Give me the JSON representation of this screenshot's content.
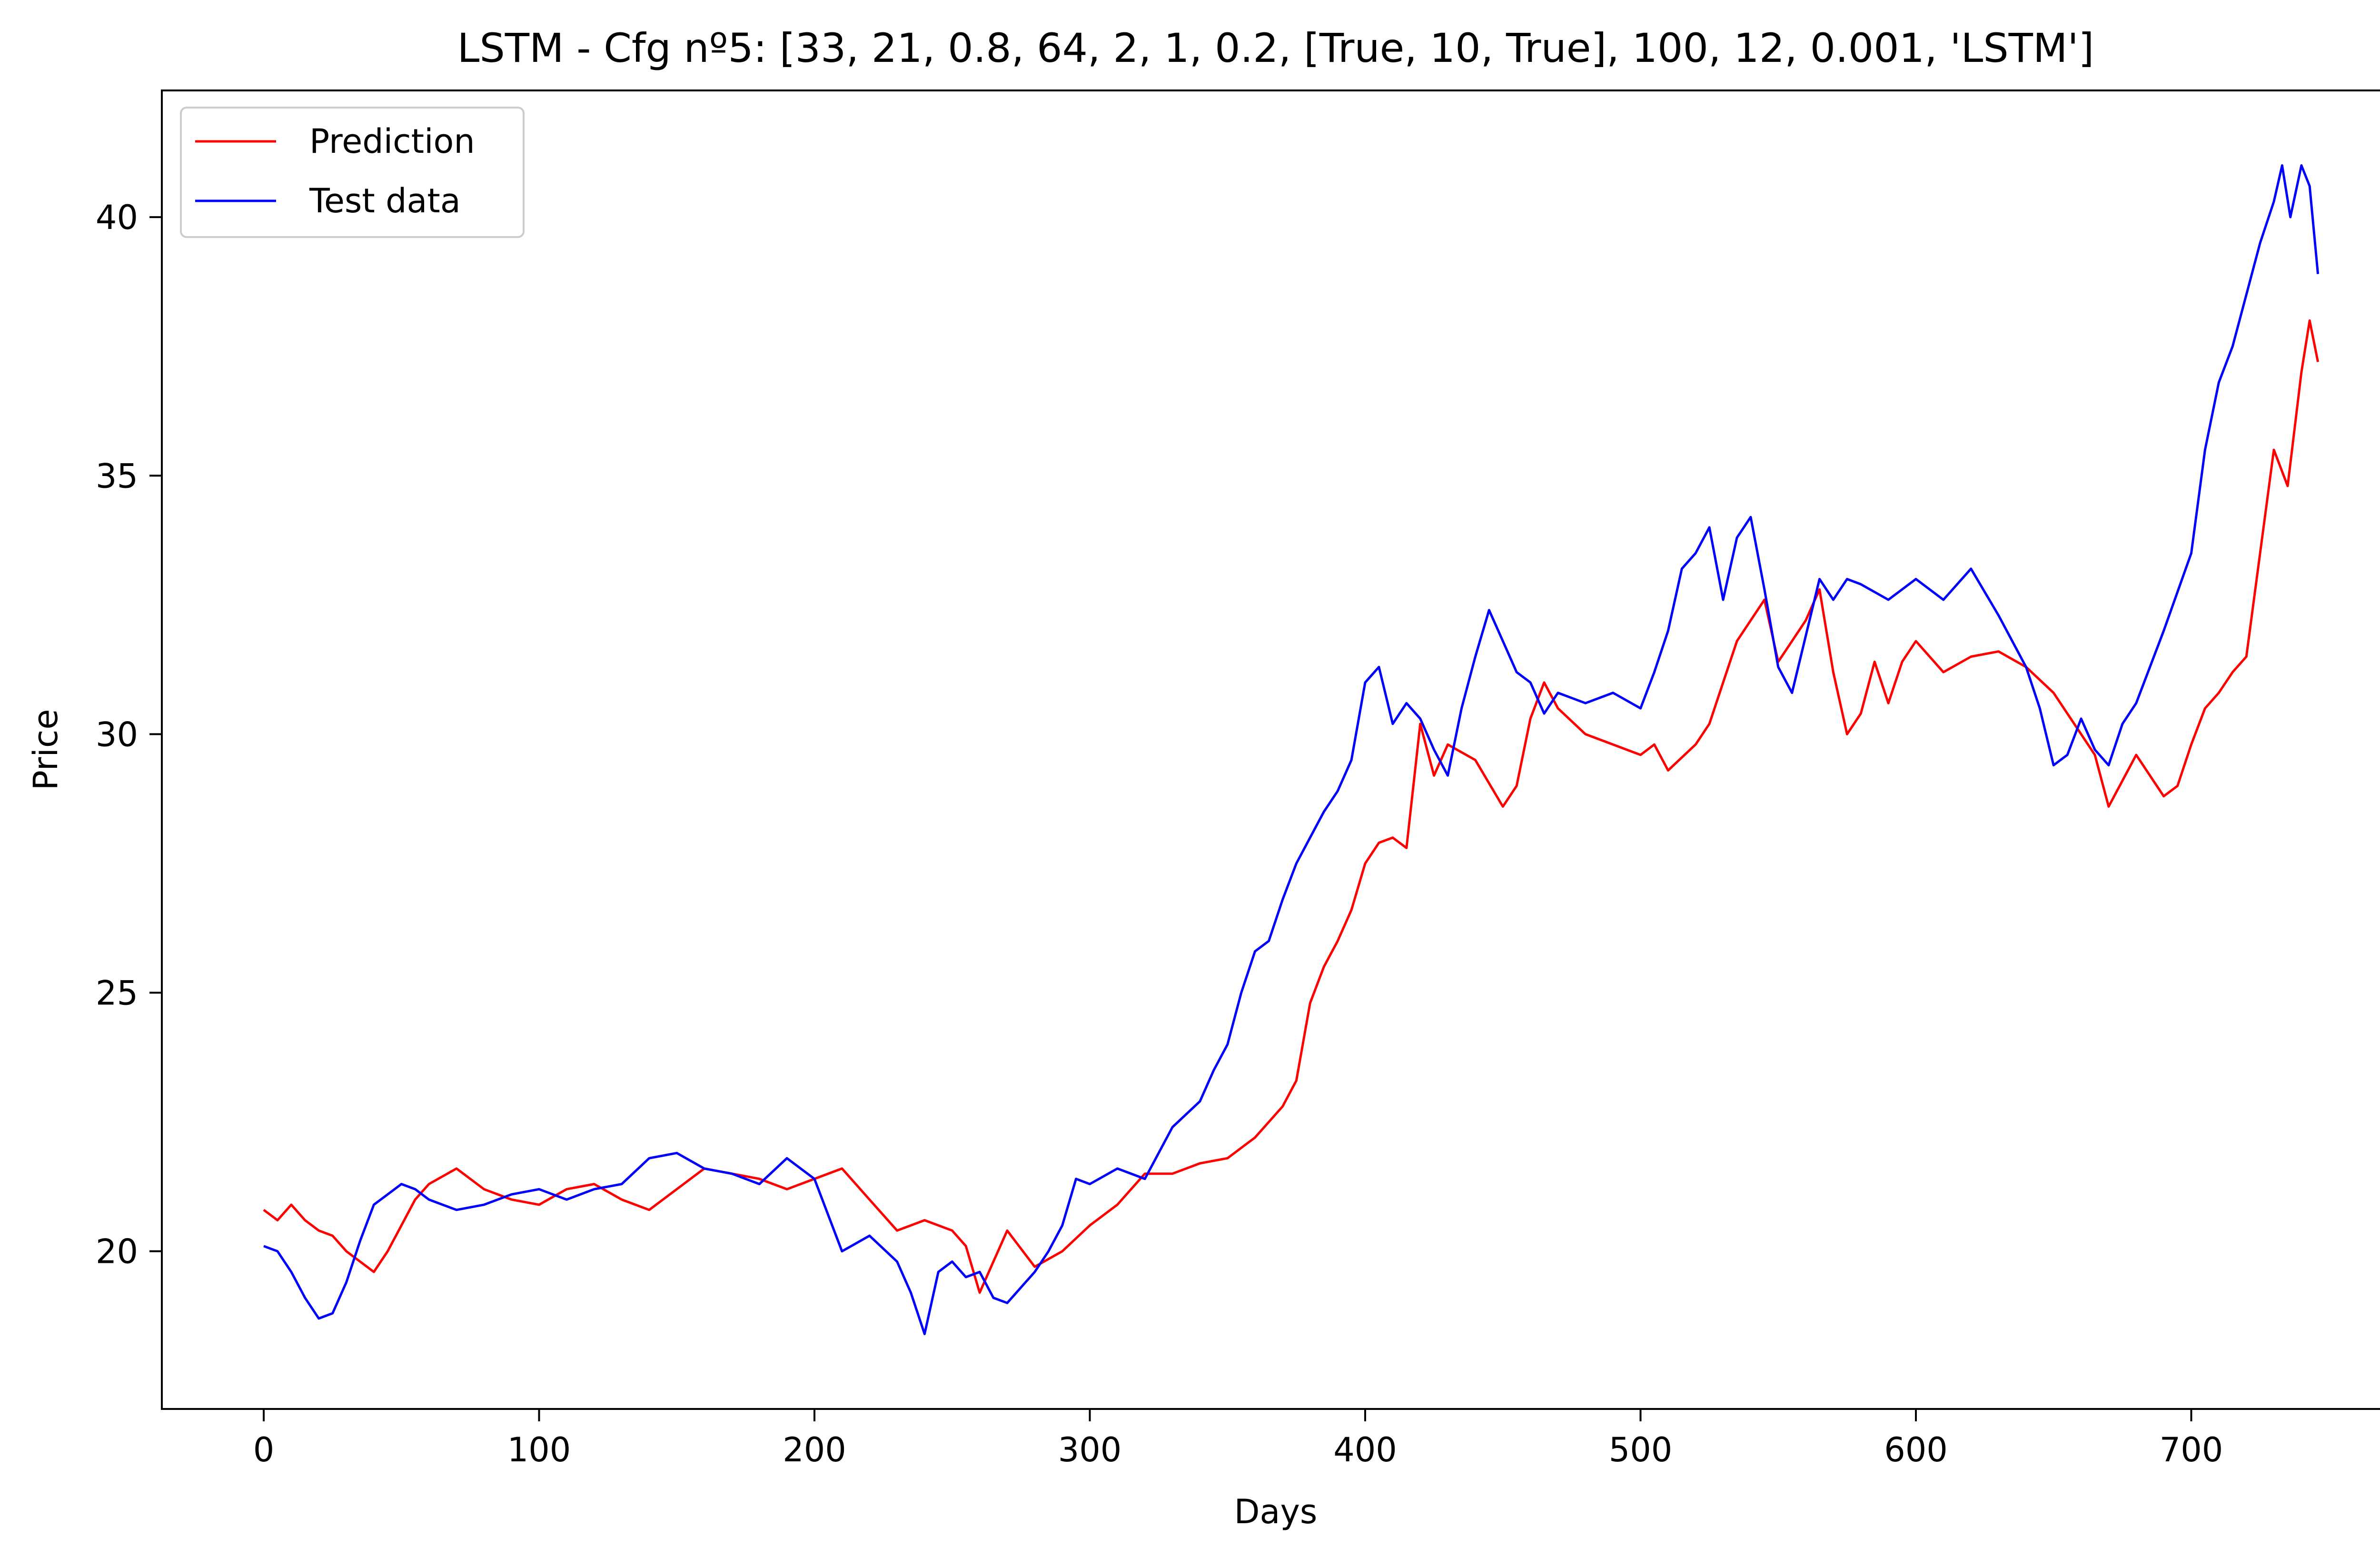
{
  "chart_data": {
    "type": "line",
    "title": "LSTM - Cfg nº5: [33, 21, 0.8, 64, 2, 1, 0.2, [True, 10, True], 100, 12, 0.001, 'LSTM']",
    "xlabel": "Days",
    "ylabel": "Price",
    "xlim": [
      -37,
      772
    ],
    "ylim": [
      16.95,
      42.45
    ],
    "xticks": [
      0,
      100,
      200,
      300,
      400,
      500,
      600,
      700
    ],
    "yticks": [
      20,
      25,
      30,
      35,
      40
    ],
    "legend": {
      "position": "top-left",
      "visible": true
    },
    "grid": false,
    "series": [
      {
        "name": "Prediction",
        "color": "#ff0000",
        "x": [
          0,
          5,
          10,
          15,
          20,
          25,
          30,
          35,
          40,
          45,
          50,
          55,
          60,
          70,
          80,
          90,
          100,
          110,
          120,
          130,
          140,
          150,
          160,
          170,
          180,
          190,
          200,
          210,
          220,
          230,
          240,
          250,
          255,
          260,
          265,
          270,
          280,
          290,
          300,
          310,
          320,
          330,
          340,
          350,
          360,
          370,
          375,
          380,
          385,
          390,
          395,
          400,
          405,
          410,
          415,
          420,
          425,
          430,
          440,
          450,
          455,
          460,
          465,
          470,
          480,
          490,
          500,
          505,
          510,
          520,
          525,
          530,
          535,
          540,
          545,
          550,
          555,
          560,
          565,
          570,
          575,
          580,
          585,
          590,
          595,
          600,
          610,
          620,
          630,
          640,
          650,
          660,
          665,
          670,
          680,
          690,
          695,
          700,
          705,
          710,
          715,
          720,
          725,
          730,
          735,
          740,
          743,
          746
        ],
        "values": [
          20.8,
          20.6,
          20.9,
          20.6,
          20.4,
          20.3,
          20.0,
          19.8,
          19.6,
          20.0,
          20.5,
          21.0,
          21.3,
          21.6,
          21.2,
          21.0,
          20.9,
          21.2,
          21.3,
          21.0,
          20.8,
          21.2,
          21.6,
          21.5,
          21.4,
          21.2,
          21.4,
          21.6,
          21.0,
          20.4,
          20.6,
          20.4,
          20.1,
          19.2,
          19.8,
          20.4,
          19.7,
          20.0,
          20.5,
          20.9,
          21.5,
          21.5,
          21.7,
          21.8,
          22.2,
          22.8,
          23.3,
          24.8,
          25.5,
          26.0,
          26.6,
          27.5,
          27.9,
          28.0,
          27.8,
          30.2,
          29.2,
          29.8,
          29.5,
          28.6,
          29.0,
          30.3,
          31.0,
          30.5,
          30.0,
          29.8,
          29.6,
          29.8,
          29.3,
          29.8,
          30.2,
          31.0,
          31.8,
          32.2,
          32.6,
          31.4,
          31.8,
          32.2,
          32.8,
          31.2,
          30.0,
          30.4,
          31.4,
          30.6,
          31.4,
          31.8,
          31.2,
          31.5,
          31.6,
          31.3,
          30.8,
          30.0,
          29.6,
          28.6,
          29.6,
          28.8,
          29.0,
          29.8,
          30.5,
          30.8,
          31.2,
          31.5,
          33.5,
          35.5,
          34.8,
          37.0,
          38.0,
          37.2
        ]
      },
      {
        "name": "Test data",
        "color": "#0000ff",
        "x": [
          0,
          5,
          10,
          15,
          20,
          25,
          30,
          35,
          40,
          45,
          50,
          55,
          60,
          70,
          80,
          90,
          100,
          110,
          120,
          130,
          140,
          150,
          160,
          170,
          180,
          190,
          200,
          210,
          220,
          230,
          235,
          240,
          245,
          250,
          255,
          260,
          265,
          270,
          280,
          285,
          290,
          295,
          300,
          310,
          320,
          330,
          340,
          345,
          350,
          355,
          360,
          365,
          370,
          375,
          380,
          385,
          390,
          395,
          400,
          405,
          410,
          415,
          420,
          425,
          430,
          435,
          440,
          445,
          450,
          455,
          460,
          465,
          470,
          480,
          490,
          500,
          505,
          510,
          515,
          520,
          525,
          530,
          535,
          540,
          545,
          550,
          555,
          560,
          565,
          570,
          575,
          580,
          590,
          600,
          610,
          620,
          630,
          640,
          645,
          650,
          655,
          660,
          665,
          670,
          675,
          680,
          690,
          700,
          705,
          710,
          715,
          720,
          725,
          730,
          733,
          736,
          740,
          743,
          746
        ],
        "values": [
          20.1,
          20.0,
          19.6,
          19.1,
          18.7,
          18.8,
          19.4,
          20.2,
          20.9,
          21.1,
          21.3,
          21.2,
          21.0,
          20.8,
          20.9,
          21.1,
          21.2,
          21.0,
          21.2,
          21.3,
          21.8,
          21.9,
          21.6,
          21.5,
          21.3,
          21.8,
          21.4,
          20.0,
          20.3,
          19.8,
          19.2,
          18.4,
          19.6,
          19.8,
          19.5,
          19.6,
          19.1,
          19.0,
          19.6,
          20.0,
          20.5,
          21.4,
          21.3,
          21.6,
          21.4,
          22.4,
          22.9,
          23.5,
          24.0,
          25.0,
          25.8,
          26.0,
          26.8,
          27.5,
          28.0,
          28.5,
          28.9,
          29.5,
          31.0,
          31.3,
          30.2,
          30.6,
          30.3,
          29.7,
          29.2,
          30.5,
          31.5,
          32.4,
          31.8,
          31.2,
          31.0,
          30.4,
          30.8,
          30.6,
          30.8,
          30.5,
          31.2,
          32.0,
          33.2,
          33.5,
          34.0,
          32.6,
          33.8,
          34.2,
          32.8,
          31.3,
          30.8,
          31.9,
          33.0,
          32.6,
          33.0,
          32.9,
          32.6,
          33.0,
          32.6,
          33.2,
          32.3,
          31.3,
          30.5,
          29.4,
          29.6,
          30.3,
          29.7,
          29.4,
          30.2,
          30.6,
          32.0,
          33.5,
          35.5,
          36.8,
          37.5,
          38.5,
          39.5,
          40.3,
          41.0,
          40.0,
          41.0,
          40.6,
          38.9
        ]
      }
    ]
  }
}
